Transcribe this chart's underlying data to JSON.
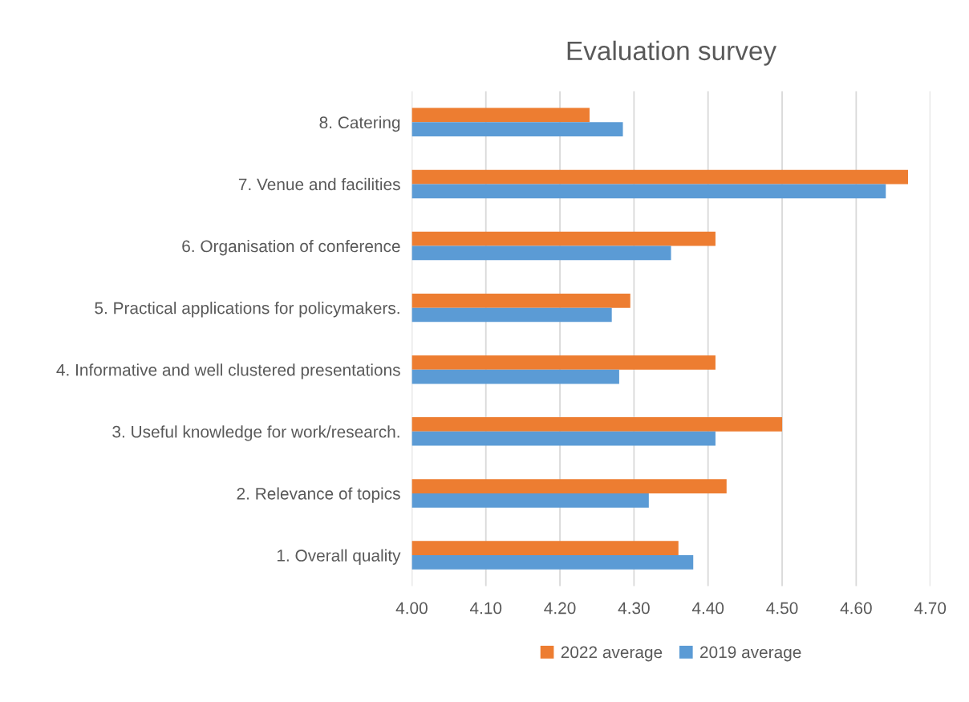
{
  "chart_data": {
    "type": "bar",
    "orientation": "horizontal",
    "title": "Evaluation survey",
    "categories": [
      "8. Catering",
      "7. Venue and facilities",
      "6. Organisation of conference",
      "5. Practical applications for policymakers.",
      "4. Informative and well clustered presentations",
      "3. Useful knowledge for work/research.",
      "2. Relevance of topics",
      "1. Overall quality"
    ],
    "series": [
      {
        "name": "2022 average",
        "color": "#ed7d31",
        "values": [
          4.24,
          4.67,
          4.41,
          4.295,
          4.41,
          4.5,
          4.425,
          4.36
        ]
      },
      {
        "name": "2019 average",
        "color": "#5b9bd5",
        "values": [
          4.285,
          4.64,
          4.35,
          4.27,
          4.28,
          4.41,
          4.32,
          4.38
        ]
      }
    ],
    "xlim": [
      4.0,
      4.7
    ],
    "xticks": [
      {
        "value": 4.0,
        "label": "4.00"
      },
      {
        "value": 4.1,
        "label": "4.10"
      },
      {
        "value": 4.2,
        "label": "4.20"
      },
      {
        "value": 4.3,
        "label": "4.30"
      },
      {
        "value": 4.4,
        "label": "4.40"
      },
      {
        "value": 4.5,
        "label": "4.50"
      },
      {
        "value": 4.6,
        "label": "4.60"
      },
      {
        "value": 4.7,
        "label": "4.70"
      }
    ],
    "grid": "x",
    "legend": "bottom"
  }
}
